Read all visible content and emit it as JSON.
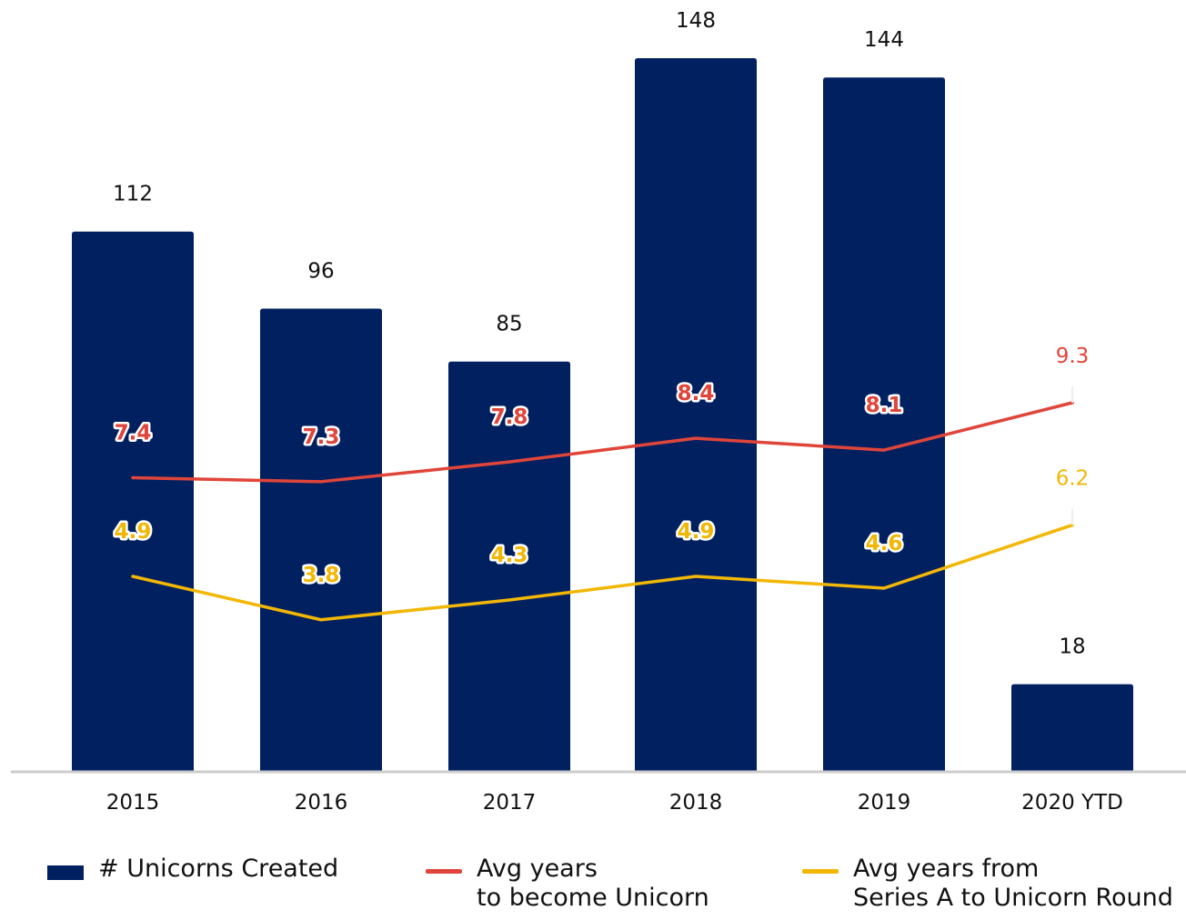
{
  "chart_data": {
    "type": "bar",
    "categories": [
      "2015",
      "2016",
      "2017",
      "2018",
      "2019",
      "2020 YTD"
    ],
    "series": [
      {
        "name": "# Unicorns Created",
        "type": "bar",
        "values": [
          112,
          96,
          85,
          148,
          144,
          18
        ],
        "color": "#002060"
      },
      {
        "name_lines": [
          "Avg years",
          "to become Unicorn"
        ],
        "type": "line",
        "values": [
          7.4,
          7.3,
          7.8,
          8.4,
          8.1,
          9.3
        ],
        "color": "#E0453A"
      },
      {
        "name_lines": [
          "Avg years from",
          "Series A to Unicorn Round"
        ],
        "type": "line",
        "values": [
          4.9,
          3.8,
          4.3,
          4.9,
          4.6,
          6.2
        ],
        "color": "#F2B705"
      }
    ],
    "bar_ylim": [
      0,
      160
    ],
    "line_ylim": [
      0,
      16
    ],
    "grid": false,
    "legend": "bottom",
    "axis_color": "#CCCCCC",
    "title": "",
    "xlabel": "",
    "ylabel": ""
  }
}
